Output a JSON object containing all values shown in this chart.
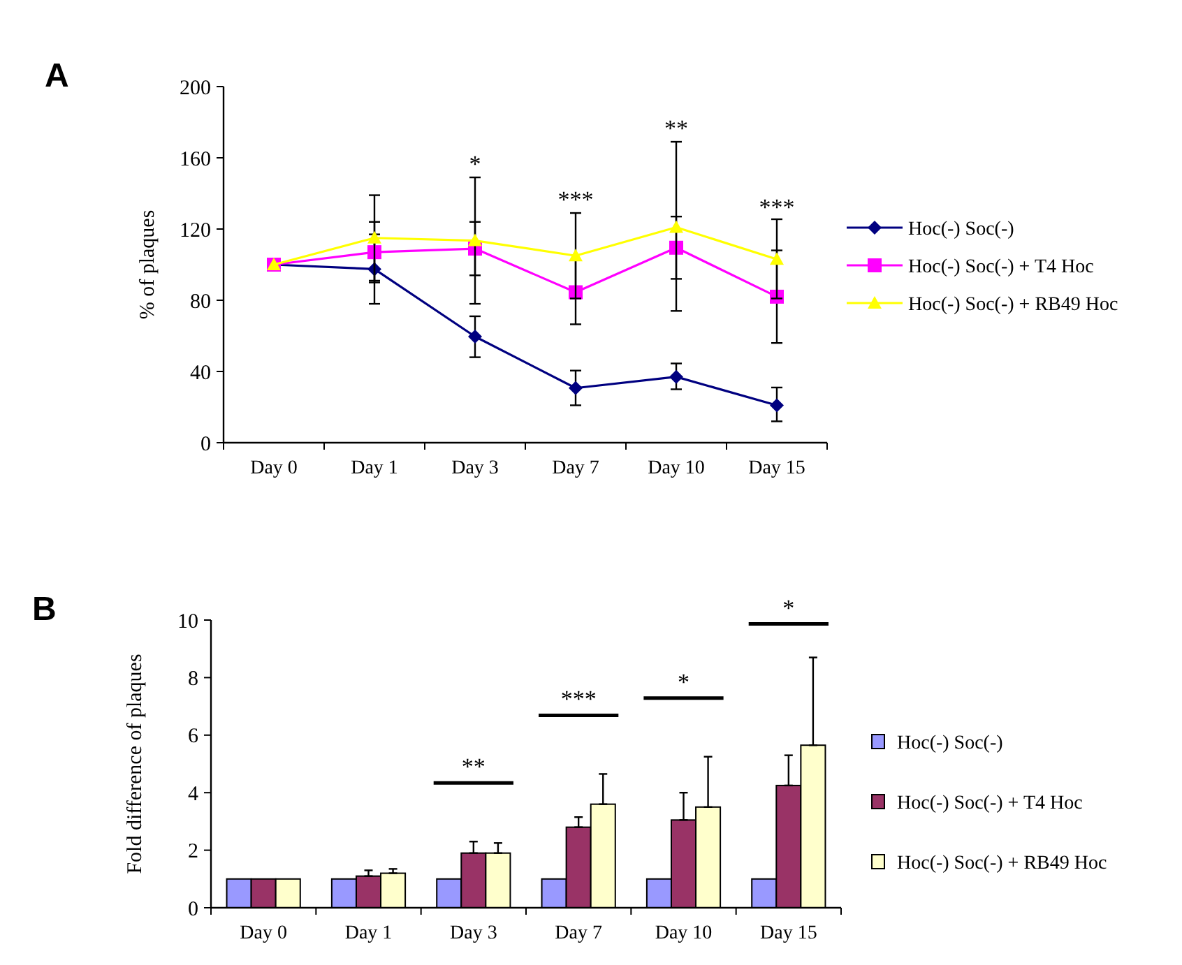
{
  "chart_data": [
    {
      "type": "line",
      "title": "A",
      "ylabel": "% of plaques",
      "categories": [
        "Day 0",
        "Day 1",
        "Day 3",
        "Day 7",
        "Day 10",
        "Day 15"
      ],
      "ylim": [
        0,
        200
      ],
      "yticks": [
        0,
        40,
        80,
        120,
        160,
        200
      ],
      "grid": false,
      "legend": "right",
      "series": [
        {
          "name": "Hoc(-) Soc(-)",
          "color": "#000080",
          "marker": "diamond",
          "values": [
            100,
            97.5,
            59.6,
            30.7,
            37,
            21
          ],
          "errors": [
            null,
            [
              78,
              117
            ],
            [
              48,
              71
            ],
            [
              21,
              40.5
            ],
            [
              30,
              44.5
            ],
            [
              12,
              31
            ]
          ]
        },
        {
          "name": "Hoc(-) Soc(-) + T4 Hoc",
          "color": "#ff00ff",
          "marker": "square",
          "values": [
            100,
            107,
            109,
            84.5,
            109.5,
            82
          ],
          "errors": [
            null,
            [
              90,
              124
            ],
            [
              94,
              124
            ],
            [
              66.5,
              102.5
            ],
            [
              92,
              127
            ],
            [
              56,
              108
            ]
          ]
        },
        {
          "name": "Hoc(-) Soc(-) + RB49 Hoc",
          "color": "#ffff00",
          "marker": "triangle",
          "values": [
            100,
            115,
            113.5,
            105,
            121,
            103
          ],
          "errors": [
            null,
            [
              91,
              139
            ],
            [
              78,
              149
            ],
            [
              81,
              129
            ],
            [
              74,
              169
            ],
            [
              81,
              125.5
            ]
          ]
        }
      ],
      "annotations": [
        {
          "text": "*",
          "x": "Day 3",
          "y": 152
        },
        {
          "text": "***",
          "x": "Day 7",
          "y": 132
        },
        {
          "text": "**",
          "x": "Day 10",
          "y": 172
        },
        {
          "text": "***",
          "x": "Day 15",
          "y": 128
        }
      ]
    },
    {
      "type": "bar",
      "title": "B",
      "ylabel": "Fold difference of plaques",
      "categories": [
        "Day 0",
        "Day 1",
        "Day 3",
        "Day 7",
        "Day 10",
        "Day 15"
      ],
      "ylim": [
        0,
        10
      ],
      "yticks": [
        0,
        2,
        4,
        6,
        8,
        10
      ],
      "grid": false,
      "legend": "right",
      "series": [
        {
          "name": "Hoc(-) Soc(-)",
          "color": "#9999ff",
          "values": [
            1,
            1,
            1,
            1,
            1,
            1
          ]
        },
        {
          "name": "Hoc(-) Soc(-) + T4 Hoc",
          "color": "#993366",
          "values": [
            1,
            1.1,
            1.9,
            2.8,
            3.05,
            4.25
          ],
          "errors": [
            null,
            [
              1.1,
              1.3
            ],
            [
              1.9,
              2.3
            ],
            [
              2.8,
              3.15
            ],
            [
              3.05,
              4
            ],
            [
              4.25,
              5.3
            ]
          ]
        },
        {
          "name": "Hoc(-) Soc(-) + RB49 Hoc",
          "color": "#ffffcc",
          "values": [
            1,
            1.2,
            1.9,
            3.6,
            3.5,
            5.65
          ],
          "errors": [
            null,
            [
              1.2,
              1.35
            ],
            [
              1.9,
              2.25
            ],
            [
              3.6,
              4.65
            ],
            [
              3.5,
              5.25
            ],
            [
              5.65,
              8.7
            ]
          ]
        }
      ],
      "annotations": [
        "**",
        "***",
        "*",
        "*"
      ]
    }
  ]
}
